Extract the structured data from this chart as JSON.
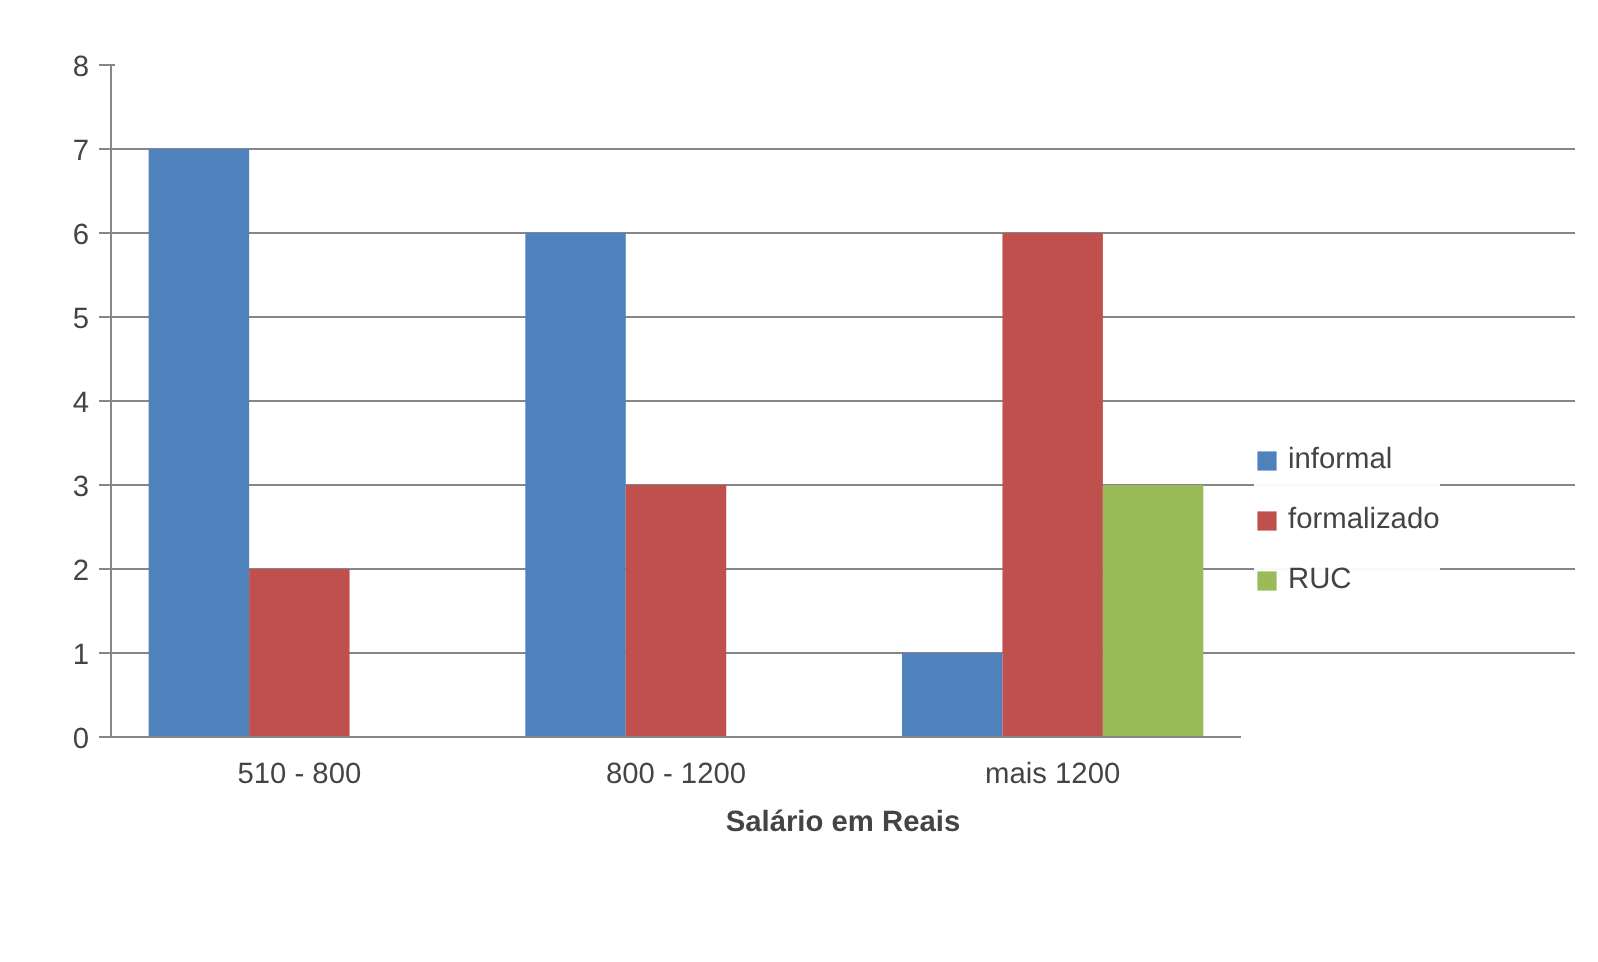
{
  "chart_data": {
    "type": "bar",
    "xlabel": "Salário em Reais",
    "categories": [
      "510 - 800",
      "800 - 1200",
      "mais 1200"
    ],
    "series": [
      {
        "name": "informal",
        "color": "#4f81bd",
        "values": [
          7,
          6,
          1
        ]
      },
      {
        "name": "formalizado",
        "color": "#c0504d",
        "values": [
          2,
          3,
          6
        ]
      },
      {
        "name": "RUC",
        "color": "#9bbb59",
        "values": [
          null,
          null,
          3
        ]
      }
    ],
    "ylim": [
      0,
      8
    ],
    "yticks": [
      0,
      1,
      2,
      3,
      4,
      5,
      6,
      7,
      8
    ],
    "grid": "y",
    "legend": "right"
  }
}
